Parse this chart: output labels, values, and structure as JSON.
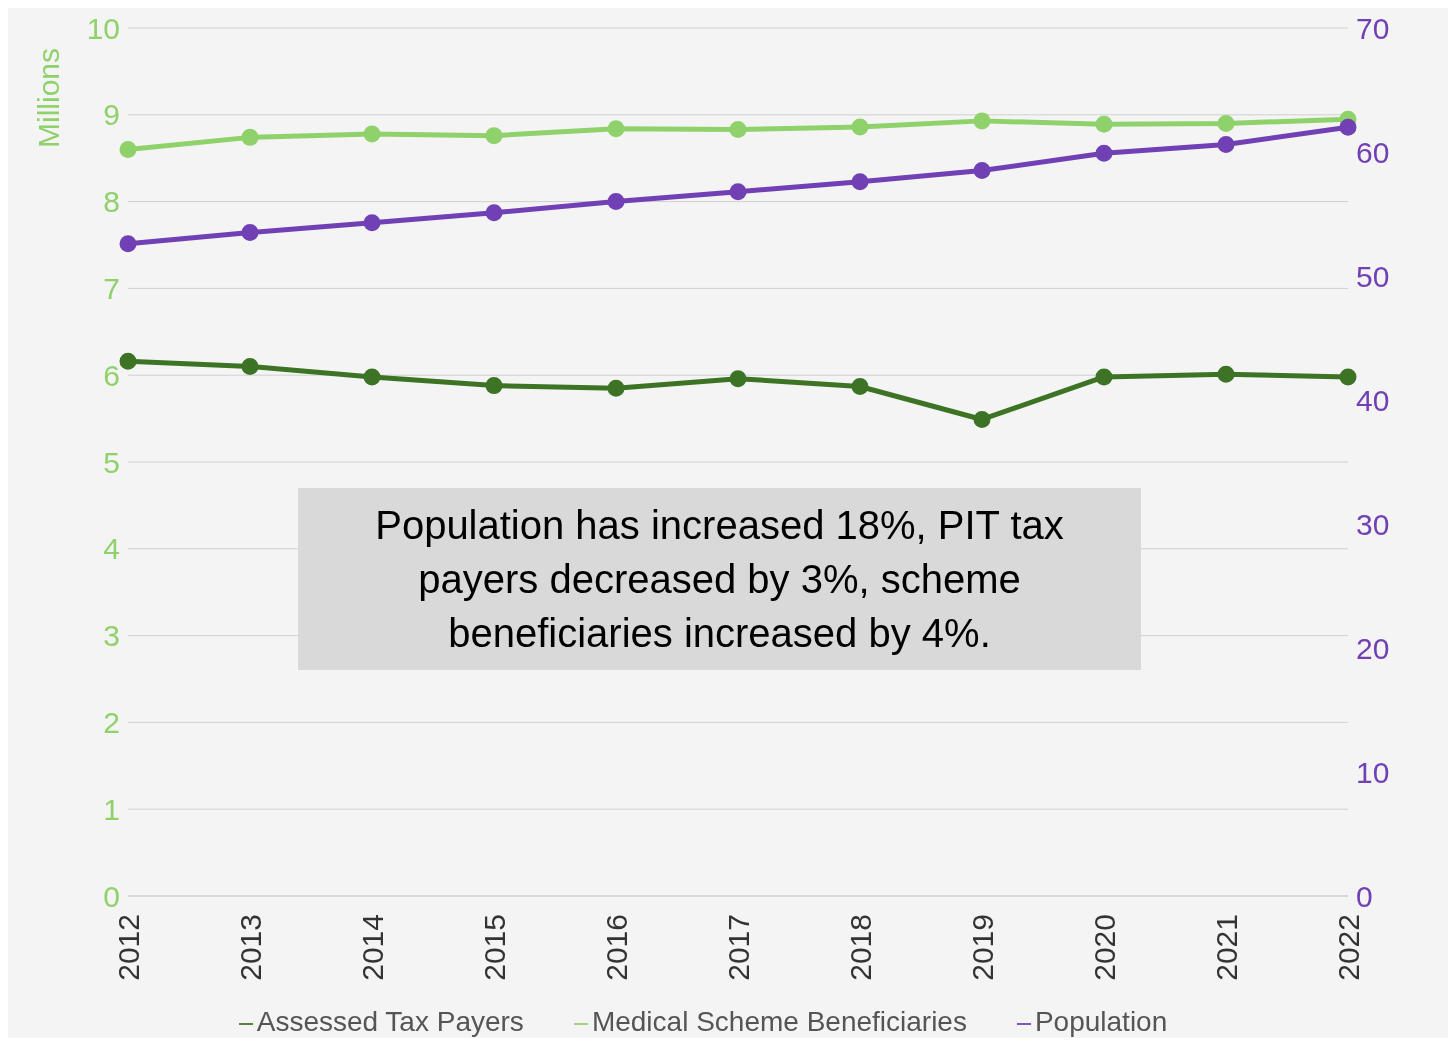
{
  "chart_data": {
    "type": "line",
    "ylabel": "Millions",
    "categories": [
      "2012",
      "2013",
      "2014",
      "2015",
      "2016",
      "2017",
      "2018",
      "2019",
      "2020",
      "2021",
      "2022"
    ],
    "series": [
      {
        "name": "Assessed Tax Payers",
        "color": "#3d7325",
        "values": [
          6.16,
          6.1,
          5.98,
          5.88,
          5.85,
          5.96,
          5.87,
          5.49,
          5.98,
          6.01,
          5.98
        ]
      },
      {
        "name": "Medical Scheme Beneficiaries",
        "color": "#8fd16a",
        "values": [
          8.6,
          8.74,
          8.78,
          8.76,
          8.84,
          8.83,
          8.86,
          8.93,
          8.89,
          8.9,
          8.95
        ]
      },
      {
        "name": "Population",
        "color": "#7040b4",
        "axis": "y2",
        "values": [
          52.6,
          53.5,
          54.3,
          55.1,
          56.0,
          56.8,
          57.6,
          58.5,
          59.9,
          60.6,
          62.0
        ]
      }
    ],
    "ylim": [
      0,
      10
    ],
    "yticks": [
      0,
      1,
      2,
      3,
      4,
      5,
      6,
      7,
      8,
      9,
      10
    ],
    "y2lim": [
      0,
      70
    ],
    "y2ticks": [
      0,
      10,
      20,
      30,
      40,
      50,
      60,
      70
    ],
    "grid": "y",
    "legend": "bottom",
    "marker": "circle",
    "line_style": "solid",
    "annotations": [
      "Population has increased 18%, PIT tax payers decreased by 3%, scheme beneficiaries increased by 4%."
    ]
  }
}
